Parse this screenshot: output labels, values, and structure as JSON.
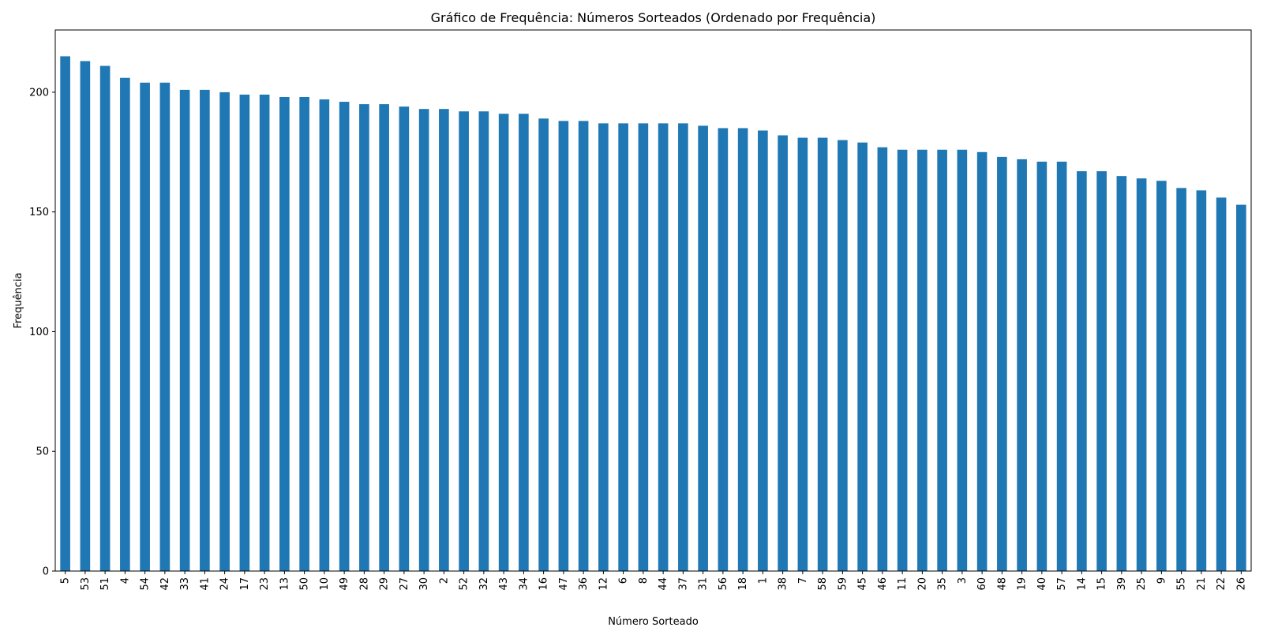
{
  "chart_data": {
    "type": "bar",
    "title": "Gráfico de Frequência: Números Sorteados (Ordenado por Frequência)",
    "xlabel": "Número Sorteado",
    "ylabel": "Frequência",
    "ylim": [
      0,
      226
    ],
    "yticks": [
      0,
      50,
      100,
      150,
      200
    ],
    "grid": false,
    "color": "#1f77b4",
    "categories": [
      "5",
      "53",
      "51",
      "4",
      "54",
      "42",
      "33",
      "41",
      "24",
      "17",
      "23",
      "13",
      "50",
      "10",
      "49",
      "28",
      "29",
      "27",
      "30",
      "2",
      "52",
      "32",
      "43",
      "34",
      "16",
      "47",
      "36",
      "12",
      "6",
      "8",
      "44",
      "37",
      "31",
      "56",
      "18",
      "1",
      "38",
      "7",
      "58",
      "59",
      "45",
      "46",
      "11",
      "20",
      "35",
      "3",
      "60",
      "48",
      "19",
      "40",
      "57",
      "14",
      "15",
      "39",
      "25",
      "9",
      "55",
      "21",
      "22",
      "26"
    ],
    "values": [
      215,
      213,
      211,
      206,
      204,
      204,
      201,
      201,
      200,
      199,
      199,
      198,
      198,
      197,
      196,
      195,
      195,
      194,
      193,
      193,
      192,
      192,
      191,
      191,
      189,
      188,
      188,
      187,
      187,
      187,
      187,
      187,
      186,
      185,
      185,
      184,
      182,
      181,
      181,
      180,
      179,
      177,
      176,
      176,
      176,
      176,
      175,
      173,
      172,
      171,
      171,
      167,
      167,
      165,
      164,
      163,
      160,
      159,
      156,
      153
    ]
  }
}
